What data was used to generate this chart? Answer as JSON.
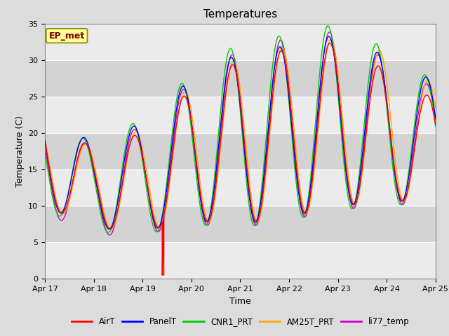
{
  "title": "Temperatures",
  "ylabel": "Temperature (C)",
  "xlabel": "Time",
  "ylim": [
    0,
    35
  ],
  "x_tick_days": [
    17,
    18,
    19,
    20,
    21,
    22,
    23,
    24,
    25
  ],
  "x_tick_labels": [
    "Apr 17",
    "Apr 18",
    "Apr 19",
    "Apr 20",
    "Apr 21",
    "Apr 22",
    "Apr 23",
    "Apr 24",
    "Apr 25"
  ],
  "ep_met_label": "EP_met",
  "ep_met_bg": "#FFFF99",
  "ep_met_fg": "#800000",
  "line_colors": {
    "AirT": "#FF0000",
    "PanelT": "#0000FF",
    "CNR1_PRT": "#00CC00",
    "AM25T_PRT": "#FFA500",
    "li77_temp": "#CC00CC"
  },
  "legend_labels": [
    "AirT",
    "PanelT",
    "CNR1_PRT",
    "AM25T_PRT",
    "li77_temp"
  ],
  "fig_bg": "#DCDCDC",
  "plot_bg": "#D3D3D3",
  "band_color": "#F5F5F5",
  "title_fontsize": 11,
  "axis_label_fontsize": 9,
  "tick_fontsize": 8
}
